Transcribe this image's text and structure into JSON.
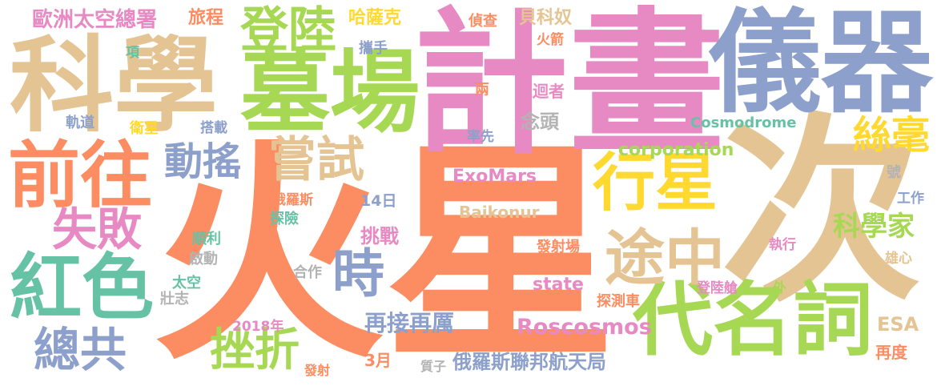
{
  "colors": {
    "salmon": "#fc8d62",
    "green": "#a6d854",
    "pink": "#e78ac3",
    "blue": "#8da0cb",
    "tan": "#e5c494",
    "yellow": "#ffd92f",
    "teal": "#66c2a5",
    "gray": "#b3b3b3"
  },
  "words": [
    "火星",
    "次",
    "計畫",
    "儀器",
    "科學",
    "墓場",
    "代名詞",
    "前往",
    "紅色",
    "行星",
    "登陸",
    "途中",
    "嘗試",
    "時",
    "挫折",
    "失敗",
    "總共",
    "動搖",
    "絲毫",
    "科學家",
    "再接再厲",
    "Roscosmos",
    "俄羅斯聯邦航天局",
    "歐洲太空總署",
    "旅程",
    "哈薩克",
    "偵查",
    "貝科奴",
    "火箭",
    "攜手",
    "項",
    "兩",
    "巡迴者",
    "軌道",
    "衛星",
    "搭載",
    "念頭",
    "Cosmodrome",
    "率先",
    "corporation",
    "ExoMars",
    "Baikonur",
    "俄羅斯",
    "14日",
    "探險",
    "挑戰",
    "號",
    "工作",
    "順利",
    "啟動",
    "發射場",
    "合作",
    "執行",
    "雄心",
    "太空",
    "state",
    "外",
    "登陸艙",
    "壯志",
    "探測車",
    "ESA",
    "2018年",
    "再度",
    "3月",
    "發射",
    "質子"
  ]
}
